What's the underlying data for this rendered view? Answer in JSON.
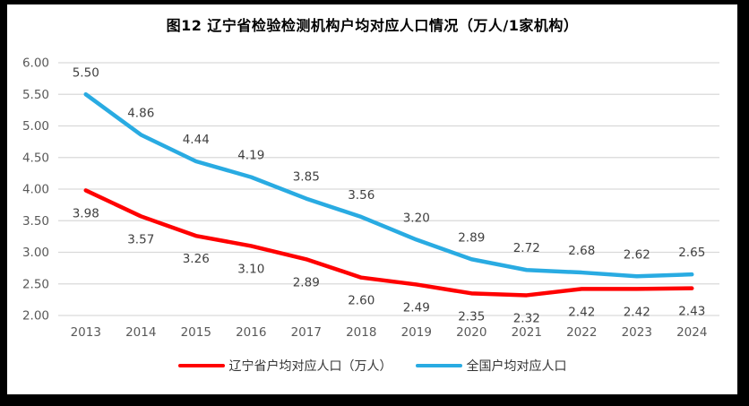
{
  "frame": {
    "title": "图12 辽宁省检验检测机构户均对应人口情况（万人/1家机构）"
  },
  "chart_data": {
    "type": "line",
    "title": "图12 辽宁省检验检测机构户均对应人口情况（万人/1家机构）",
    "categories": [
      "2013",
      "2014",
      "2015",
      "2016",
      "2017",
      "2018",
      "2019",
      "2020",
      "2021",
      "2022",
      "2023",
      "2024"
    ],
    "series": [
      {
        "name": "辽宁省户均对应人口（万人）",
        "color": "#FF0000",
        "values": [
          3.98,
          3.57,
          3.26,
          3.1,
          2.89,
          2.6,
          2.49,
          2.35,
          2.32,
          2.42,
          2.42,
          2.43
        ],
        "label_position": "below"
      },
      {
        "name": "全国户均对应人口",
        "color": "#29ABE2",
        "values": [
          5.5,
          4.86,
          4.44,
          4.19,
          3.85,
          3.56,
          3.2,
          2.89,
          2.72,
          2.68,
          2.62,
          2.65
        ],
        "label_position": "above"
      }
    ],
    "xlabel": "",
    "ylabel": "",
    "ylim": [
      2.0,
      6.0
    ],
    "y_ticks": [
      "6.00",
      "5.50",
      "5.00",
      "4.50",
      "4.00",
      "3.50",
      "3.00",
      "2.50",
      "2.00"
    ],
    "grid": true,
    "legend_position": "bottom",
    "value_labels_visible": true,
    "colors": {
      "gridline": "#D9D9D9",
      "axis_text": "#595959",
      "data_label_text": "#404040",
      "frame": "#000000",
      "background": "#FFFFFF"
    }
  }
}
